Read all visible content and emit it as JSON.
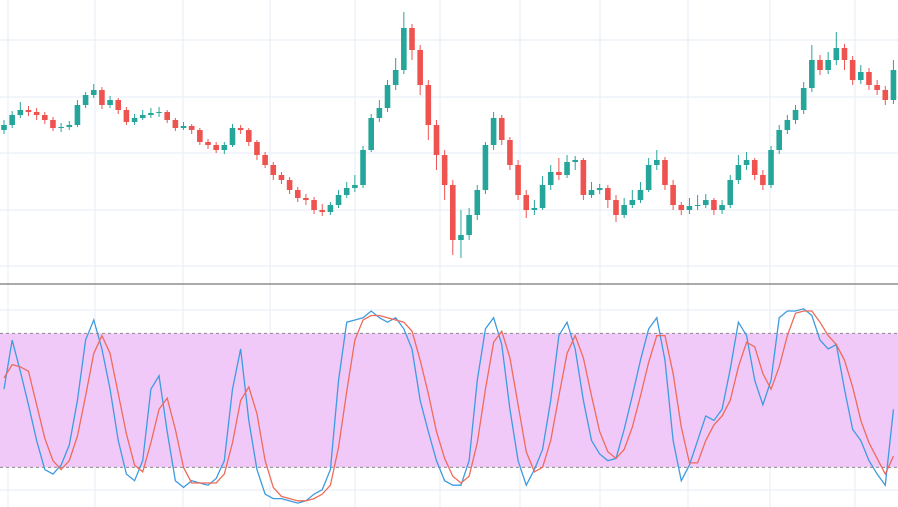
{
  "chart_data": [
    {
      "type": "candlestick",
      "up_color": "#26a69a",
      "down_color": "#ef5350",
      "ylim": [
        0,
        270
      ],
      "open": [
        140,
        145,
        155,
        160,
        158,
        155,
        150,
        142,
        143,
        145,
        165,
        175,
        180,
        165,
        170,
        160,
        148,
        152,
        155,
        157,
        158,
        150,
        142,
        144,
        140,
        128,
        125,
        120,
        125,
        142,
        140,
        128,
        115,
        105,
        95,
        90,
        80,
        72,
        70,
        60,
        58,
        65,
        75,
        82,
        85,
        120,
        152,
        162,
        185,
        200,
        242,
        220,
        185,
        145,
        115,
        85,
        30,
        35,
        55,
        80,
        125,
        152,
        130,
        105,
        75,
        60,
        62,
        85,
        98,
        95,
        108,
        110,
        75,
        80,
        82,
        70,
        55,
        65,
        70,
        80,
        105,
        110,
        85,
        65,
        60,
        64,
        65,
        70,
        60,
        65,
        90,
        105,
        110,
        95,
        85,
        120,
        140,
        150,
        160,
        182,
        210,
        200,
        210,
        222,
        210,
        190,
        198,
        185,
        180,
        170
      ],
      "high": [
        150,
        159,
        168,
        164,
        162,
        158,
        153,
        147,
        149,
        170,
        178,
        186,
        183,
        174,
        172,
        163,
        156,
        160,
        162,
        163,
        160,
        152,
        148,
        146,
        142,
        131,
        128,
        128,
        146,
        145,
        142,
        130,
        118,
        108,
        98,
        93,
        83,
        76,
        73,
        66,
        68,
        80,
        88,
        95,
        124,
        156,
        170,
        190,
        212,
        258,
        246,
        225,
        190,
        150,
        120,
        90,
        60,
        62,
        85,
        128,
        158,
        155,
        133,
        110,
        80,
        70,
        94,
        105,
        112,
        115,
        114,
        112,
        88,
        86,
        85,
        75,
        72,
        80,
        88,
        112,
        120,
        113,
        90,
        68,
        72,
        75,
        76,
        72,
        70,
        95,
        115,
        118,
        112,
        100,
        124,
        145,
        155,
        165,
        188,
        225,
        215,
        218,
        238,
        226,
        214,
        205,
        202,
        190,
        184,
        210
      ],
      "low": [
        136,
        142,
        152,
        154,
        150,
        146,
        139,
        138,
        140,
        143,
        162,
        172,
        161,
        162,
        156,
        145,
        145,
        150,
        152,
        153,
        147,
        139,
        140,
        136,
        125,
        121,
        117,
        116,
        123,
        136,
        124,
        110,
        102,
        90,
        86,
        76,
        68,
        65,
        56,
        54,
        55,
        62,
        72,
        78,
        82,
        118,
        148,
        158,
        180,
        196,
        210,
        175,
        130,
        100,
        70,
        15,
        12,
        30,
        50,
        76,
        120,
        125,
        100,
        70,
        52,
        55,
        60,
        80,
        90,
        92,
        100,
        70,
        72,
        76,
        62,
        48,
        52,
        62,
        67,
        78,
        100,
        80,
        60,
        55,
        56,
        60,
        62,
        55,
        56,
        62,
        86,
        100,
        90,
        80,
        82,
        116,
        136,
        146,
        156,
        178,
        195,
        196,
        205,
        200,
        185,
        186,
        180,
        175,
        165,
        166
      ],
      "close": [
        145,
        155,
        160,
        158,
        155,
        150,
        142,
        143,
        145,
        165,
        175,
        180,
        165,
        170,
        160,
        148,
        152,
        155,
        157,
        158,
        150,
        142,
        144,
        140,
        128,
        125,
        120,
        125,
        142,
        140,
        128,
        115,
        105,
        95,
        90,
        80,
        72,
        70,
        60,
        58,
        65,
        75,
        82,
        85,
        120,
        152,
        162,
        185,
        200,
        242,
        220,
        185,
        145,
        115,
        85,
        30,
        35,
        55,
        80,
        125,
        152,
        130,
        105,
        75,
        60,
        62,
        85,
        98,
        95,
        108,
        110,
        75,
        80,
        82,
        70,
        55,
        65,
        70,
        80,
        105,
        110,
        85,
        65,
        60,
        64,
        65,
        70,
        60,
        65,
        90,
        105,
        110,
        95,
        85,
        120,
        140,
        150,
        160,
        182,
        210,
        200,
        210,
        222,
        210,
        190,
        198,
        185,
        180,
        170,
        200
      ]
    },
    {
      "type": "line",
      "ylim": [
        0,
        100
      ],
      "bands": [
        20,
        80
      ],
      "band_color": "#f1c9f9",
      "series": [
        {
          "color": "#3d9be0",
          "values": [
            55,
            77,
            63,
            48,
            32,
            19,
            17,
            21,
            30,
            50,
            77,
            86,
            73,
            55,
            32,
            17,
            14,
            23,
            55,
            61,
            36,
            14,
            11,
            14,
            13,
            12,
            15,
            23,
            55,
            73,
            41,
            19,
            8,
            6,
            6,
            5,
            4,
            5,
            8,
            10,
            19,
            59,
            85,
            86,
            87,
            90,
            87,
            85,
            87,
            82,
            73,
            50,
            36,
            23,
            14,
            12,
            12,
            23,
            59,
            82,
            87,
            75,
            46,
            23,
            12,
            19,
            28,
            50,
            79,
            85,
            73,
            50,
            32,
            26,
            23,
            24,
            37,
            52,
            68,
            82,
            87,
            68,
            32,
            14,
            21,
            32,
            43,
            41,
            46,
            64,
            85,
            79,
            59,
            48,
            59,
            87,
            90,
            90,
            91,
            88,
            77,
            73,
            75,
            55,
            37,
            32,
            23,
            17,
            12,
            46
          ]
        },
        {
          "color": "#ef6b5a",
          "values": [
            60,
            66,
            65,
            63,
            48,
            33,
            23,
            19,
            23,
            34,
            52,
            71,
            79,
            71,
            53,
            35,
            21,
            18,
            31,
            46,
            51,
            37,
            20,
            13,
            13,
            13,
            13,
            17,
            31,
            50,
            56,
            44,
            23,
            11,
            7,
            6,
            5,
            5,
            6,
            8,
            12,
            29,
            54,
            77,
            86,
            88,
            88,
            87,
            86,
            85,
            81,
            68,
            53,
            36,
            24,
            16,
            13,
            16,
            31,
            55,
            76,
            81,
            69,
            48,
            27,
            18,
            20,
            32,
            52,
            71,
            79,
            69,
            52,
            36,
            27,
            24,
            28,
            38,
            52,
            67,
            79,
            79,
            62,
            38,
            22,
            22,
            32,
            39,
            43,
            50,
            65,
            76,
            74,
            62,
            55,
            65,
            79,
            89,
            90,
            90,
            85,
            79,
            75,
            68,
            56,
            41,
            31,
            24,
            17,
            25
          ]
        }
      ]
    }
  ]
}
